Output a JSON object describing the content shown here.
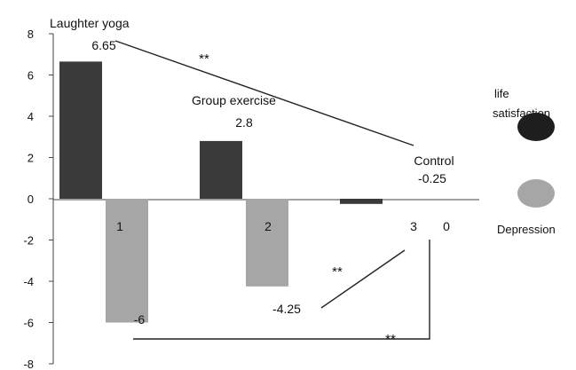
{
  "chart_data": {
    "type": "bar",
    "categories": [
      "1",
      "2",
      "3"
    ],
    "group_labels": [
      "Laughter yoga",
      "Group exercise",
      "Control"
    ],
    "ylim": [
      -8,
      8
    ],
    "yticks": [
      "8",
      "6",
      "4",
      "2",
      "0",
      "-2",
      "-4",
      "-6",
      "-8"
    ],
    "series": [
      {
        "name": "life satisfaction",
        "values": [
          6.65,
          2.8,
          -0.25
        ],
        "value_labels": [
          "6.65",
          "2.8",
          "-0.25"
        ],
        "color": "#3a3a3a"
      },
      {
        "name": "Depression",
        "values": [
          -6,
          -4.25,
          0
        ],
        "value_labels": [
          "-6",
          "-4.25",
          "0"
        ],
        "color": "#a6a6a6"
      }
    ],
    "legend": {
      "placement": "right",
      "items": [
        {
          "label": "life satisfaction",
          "color": "#1e1e1e"
        },
        {
          "label": "Depression",
          "color": "#a6a6a6"
        }
      ]
    },
    "annotations": [
      "**",
      "**",
      "**"
    ],
    "grid": false
  }
}
